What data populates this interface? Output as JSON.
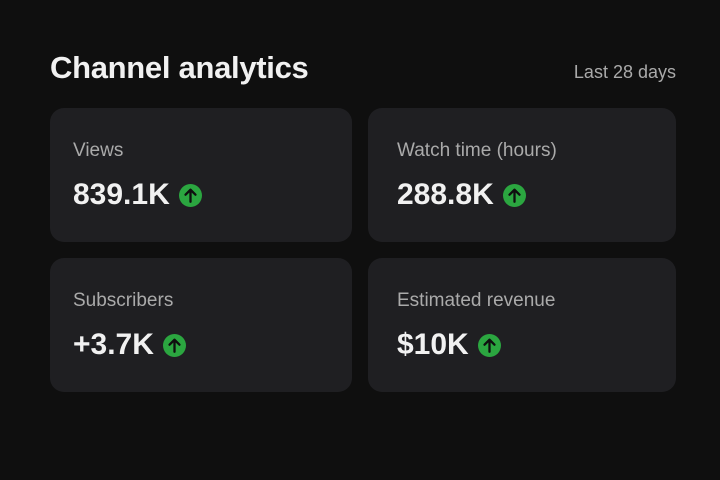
{
  "header": {
    "title": "Channel analytics",
    "period": "Last 28 days"
  },
  "metrics": [
    {
      "label": "Views",
      "value": "839.1K",
      "trend": "up",
      "trend_icon": "arrow-up-circle-icon"
    },
    {
      "label": "Watch time (hours)",
      "value": "288.8K",
      "trend": "up",
      "trend_icon": "arrow-up-circle-icon"
    },
    {
      "label": "Subscribers",
      "value": "+3.7K",
      "trend": "up",
      "trend_icon": "arrow-up-circle-icon"
    },
    {
      "label": "Estimated revenue",
      "value": "$10K",
      "trend": "up",
      "trend_icon": "arrow-up-circle-icon"
    }
  ],
  "colors": {
    "background": "#0f0f0f",
    "card": "#1f1f22",
    "trend_up": "#2ba640",
    "text_primary": "#f1f1f1",
    "text_secondary": "#aaaaaa"
  }
}
